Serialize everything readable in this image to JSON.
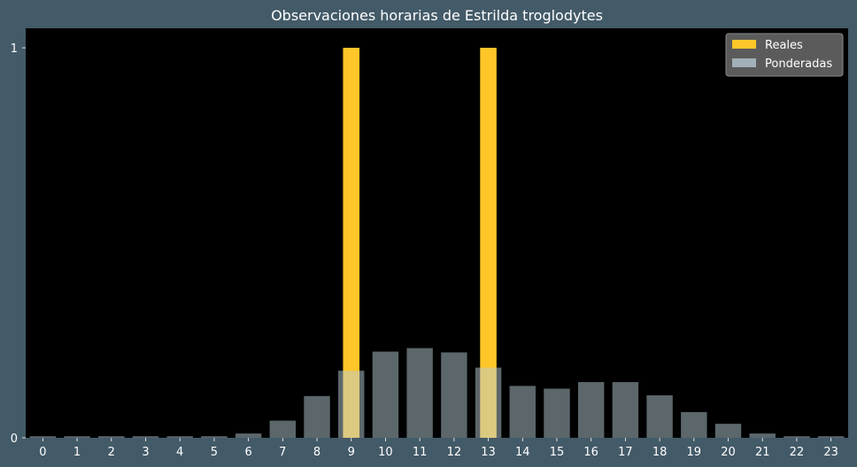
{
  "chart_data": {
    "type": "bar",
    "title": "Observaciones horarias de Estrilda troglodytes",
    "xlabel": "",
    "ylabel": "",
    "categories": [
      "0",
      "1",
      "2",
      "3",
      "4",
      "5",
      "6",
      "7",
      "8",
      "9",
      "10",
      "11",
      "12",
      "13",
      "14",
      "15",
      "16",
      "17",
      "18",
      "19",
      "20",
      "21",
      "22",
      "23"
    ],
    "ylim": [
      0,
      1.05
    ],
    "yticks": [
      0,
      1
    ],
    "series": [
      {
        "name": "Reales",
        "color": "#ffc629",
        "values": [
          0,
          0,
          0,
          0,
          0,
          0,
          0,
          0,
          0,
          1,
          0,
          0,
          0,
          1,
          0,
          0,
          0,
          0,
          0,
          0,
          0,
          0,
          0,
          0
        ]
      },
      {
        "name": "Ponderadas",
        "color": "#b8cdd5",
        "opacity": 0.5,
        "values": [
          0.004,
          0.004,
          0.004,
          0.004,
          0.004,
          0.004,
          0.011,
          0.044,
          0.107,
          0.172,
          0.221,
          0.23,
          0.219,
          0.18,
          0.133,
          0.126,
          0.143,
          0.143,
          0.109,
          0.066,
          0.036,
          0.011,
          0.004,
          0.004
        ]
      }
    ],
    "legend_position": "top-right",
    "background": "#000000",
    "figure_background": "#435a68",
    "text_color": "#ffffff"
  }
}
